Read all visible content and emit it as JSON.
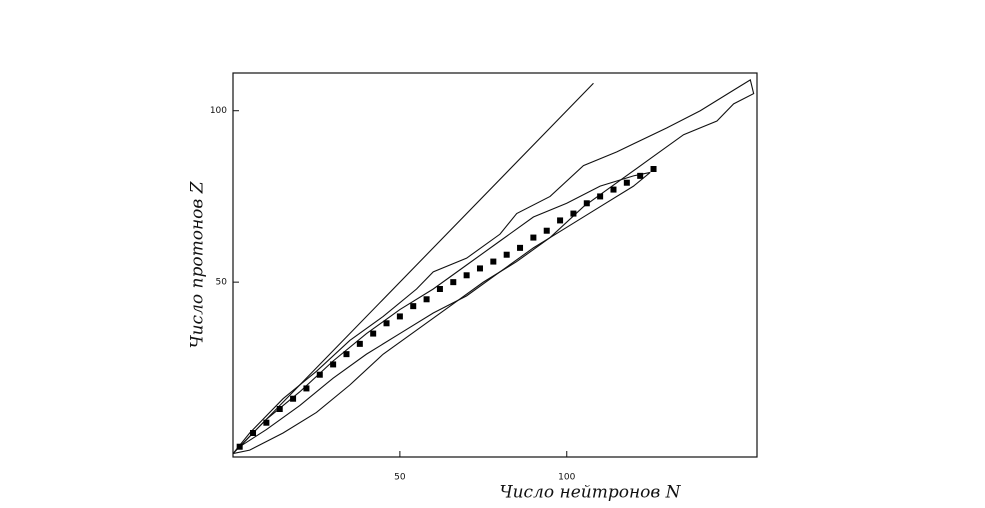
{
  "chart_data": {
    "type": "line",
    "x_label": "Число нейтронов N",
    "y_label": "Число протонов Z",
    "xlim": [
      0,
      157
    ],
    "ylim": [
      -1,
      111
    ],
    "xticks": [
      50,
      100
    ],
    "yticks": [
      50,
      100
    ],
    "series": [
      {
        "type": "line",
        "color": "#111",
        "x": [
          0,
          5,
          15,
          25,
          35,
          45,
          55,
          60,
          70,
          80,
          85,
          95,
          105,
          115,
          130,
          140,
          150,
          155,
          156,
          150,
          145,
          135,
          125,
          115,
          105,
          95,
          85,
          75,
          65,
          55,
          45,
          35,
          25,
          15,
          5,
          0
        ],
        "values": [
          0,
          6,
          16,
          24,
          33,
          40,
          48,
          53,
          57,
          64,
          70,
          75,
          84,
          88,
          95,
          100,
          106,
          109,
          105,
          102,
          97,
          93,
          86,
          79,
          72,
          63,
          56,
          50,
          43,
          36,
          29,
          20,
          12,
          6,
          1,
          0
        ]
      },
      {
        "type": "line",
        "color": "#111",
        "x": [
          2,
          10,
          20,
          30,
          40,
          50,
          60,
          70,
          80,
          90,
          100,
          110,
          120,
          125,
          120,
          110,
          100,
          90,
          80,
          70,
          60,
          50,
          40,
          30,
          20,
          10,
          2
        ],
        "values": [
          2,
          10,
          18,
          27,
          35,
          42,
          48,
          55,
          62,
          69,
          73,
          78,
          81,
          82,
          78,
          72,
          66,
          60,
          53,
          46,
          41,
          35,
          29,
          22,
          14,
          7,
          2
        ]
      },
      {
        "type": "line",
        "color": "#111",
        "x": [
          0,
          108
        ],
        "values": [
          0,
          108
        ]
      },
      {
        "type": "scatter",
        "color": "#000",
        "x": [
          2,
          6,
          10,
          14,
          18,
          22,
          26,
          30,
          34,
          38,
          42,
          46,
          50,
          54,
          58,
          62,
          66,
          70,
          74,
          78,
          82,
          86,
          90,
          94,
          98,
          102,
          106,
          110,
          114,
          118,
          122,
          126
        ],
        "values": [
          2,
          6,
          9,
          13,
          16,
          19,
          23,
          26,
          29,
          32,
          35,
          38,
          40,
          43,
          45,
          48,
          50,
          52,
          54,
          56,
          58,
          60,
          63,
          65,
          68,
          70,
          73,
          75,
          77,
          79,
          81,
          83
        ]
      }
    ]
  }
}
